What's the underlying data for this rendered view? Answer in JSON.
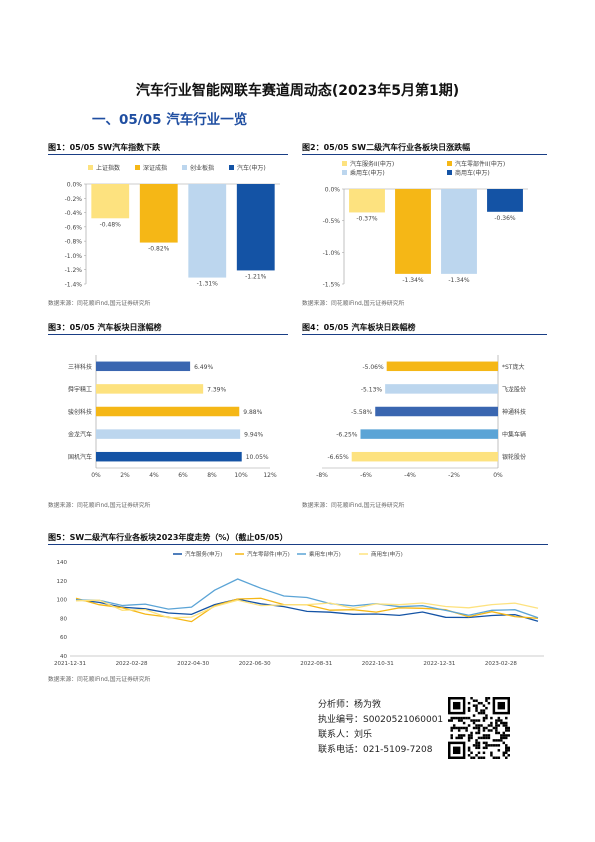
{
  "doc_title": "汽车行业智能网联车赛道周动态(2023年5月第1期)",
  "section_title": "一、05/05 汽车行业一览",
  "source_note": "数据来源：同花顺iFind,国元证券研究所",
  "colors": {
    "yellow_light": "#fde27f",
    "gold": "#f5b716",
    "light_blue": "#bcd6ee",
    "dark_blue": "#1453a5",
    "mid_blue": "#3a66b0",
    "cyan": "#5ba4d6"
  },
  "fig1": {
    "title": "图1：05/05 SW汽车指数下跌",
    "chart_data": {
      "type": "bar",
      "categories": [
        "上证指数",
        "深证成指",
        "创业板指",
        "汽车(申万)"
      ],
      "values": [
        -0.48,
        -0.82,
        -1.31,
        -1.21
      ],
      "value_labels": [
        "-0.48%",
        "-0.82%",
        "-1.31%",
        "-1.21%"
      ],
      "yticks": [
        "0.0%",
        "-0.2%",
        "-0.4%",
        "-0.6%",
        "-0.8%",
        "-1.0%",
        "-1.2%",
        "-1.4%"
      ],
      "ylim": [
        -1.4,
        0
      ],
      "legend": [
        "上证指数",
        "深证成指",
        "创业板指",
        "汽车(申万)"
      ]
    }
  },
  "fig2": {
    "title": "图2：05/05 SW二级汽车行业各板块日涨跌幅",
    "chart_data": {
      "type": "bar",
      "categories": [
        "汽车服务II(申万)",
        "汽车零部件II(申万)",
        "乘用车(申万)",
        "商用车(申万)"
      ],
      "values": [
        -0.37,
        -1.34,
        -1.34,
        -0.36
      ],
      "value_labels": [
        "-0.37%",
        "-1.34%",
        "-1.34%",
        "-0.36%"
      ],
      "yticks": [
        "0.0%",
        "-0.5%",
        "-1.0%",
        "-1.5%"
      ],
      "ylim": [
        -1.5,
        0
      ],
      "legend": [
        "汽车服务II(申万)",
        "汽车零部件II(申万)",
        "乘用车(申万)",
        "商用车(申万)"
      ]
    }
  },
  "fig3": {
    "title": "图3：05/05 汽车板块日涨幅榜",
    "chart_data": {
      "type": "bar",
      "orientation": "horizontal",
      "categories": [
        "三祥科技",
        "舜宇精工",
        "骏创科技",
        "金龙汽车",
        "国机汽车"
      ],
      "values": [
        6.49,
        7.39,
        9.88,
        9.94,
        10.05
      ],
      "value_labels": [
        "6.49%",
        "7.39%",
        "9.88%",
        "9.94%",
        "10.05%"
      ],
      "xticks": [
        "0%",
        "2%",
        "4%",
        "6%",
        "8%",
        "10%",
        "12%"
      ],
      "xlim": [
        0,
        12
      ]
    }
  },
  "fig4": {
    "title": "图4：05/05 汽车板块日跌幅榜",
    "chart_data": {
      "type": "bar",
      "orientation": "horizontal",
      "categories": [
        "*ST庞大",
        "飞龙股份",
        "神通科技",
        "中集车辆",
        "银轮股份"
      ],
      "values": [
        -5.06,
        -5.13,
        -5.58,
        -6.25,
        -6.65
      ],
      "value_labels": [
        "-5.06%",
        "-5.13%",
        "-5.58%",
        "-6.25%",
        "-6.65%"
      ],
      "xticks": [
        "-8%",
        "-6%",
        "-4%",
        "-2%",
        "0%"
      ],
      "xlim": [
        -8,
        0
      ]
    }
  },
  "fig5": {
    "title": "图5：SW二级汽车行业各板块2023年度走势（%）（截止05/05）",
    "chart_data": {
      "type": "line",
      "legend": [
        "汽车服务(申万)",
        "汽车零部件(申万)",
        "乘用车(申万)",
        "商用车(申万)"
      ],
      "yticks": [
        "140",
        "120",
        "100",
        "80",
        "60",
        "40"
      ],
      "ylim": [
        40,
        140
      ],
      "xticks": [
        "2021-12-31",
        "2022-02-28",
        "2022-04-30",
        "2022-06-30",
        "2022-08-31",
        "2022-10-31",
        "2022-12-31",
        "2023-02-28"
      ],
      "series": [
        {
          "name": "汽车服务(申万)",
          "values": [
            100,
            97,
            92,
            90,
            86,
            84,
            95,
            100,
            96,
            92,
            88,
            86,
            85,
            84,
            84,
            86,
            82,
            80,
            84,
            83,
            78
          ]
        },
        {
          "name": "汽车零部件(申万)",
          "values": [
            100,
            96,
            90,
            86,
            80,
            78,
            92,
            102,
            100,
            96,
            93,
            90,
            88,
            88,
            90,
            92,
            88,
            83,
            86,
            83,
            79
          ]
        },
        {
          "name": "乘用车(申万)",
          "values": [
            100,
            99,
            94,
            95,
            90,
            92,
            110,
            122,
            112,
            104,
            102,
            96,
            93,
            96,
            92,
            94,
            88,
            84,
            88,
            90,
            80
          ]
        },
        {
          "name": "商用车(申万)",
          "values": [
            100,
            98,
            90,
            88,
            82,
            80,
            94,
            98,
            95,
            93,
            96,
            95,
            92,
            94,
            96,
            95,
            94,
            90,
            96,
            95,
            92
          ]
        }
      ]
    }
  },
  "signature": {
    "analyst": "分析师：杨为敩",
    "cert": "执业编号：S0020521060001",
    "contact": "联系人：刘乐",
    "phone": "联系电话：021-5109-7208"
  }
}
